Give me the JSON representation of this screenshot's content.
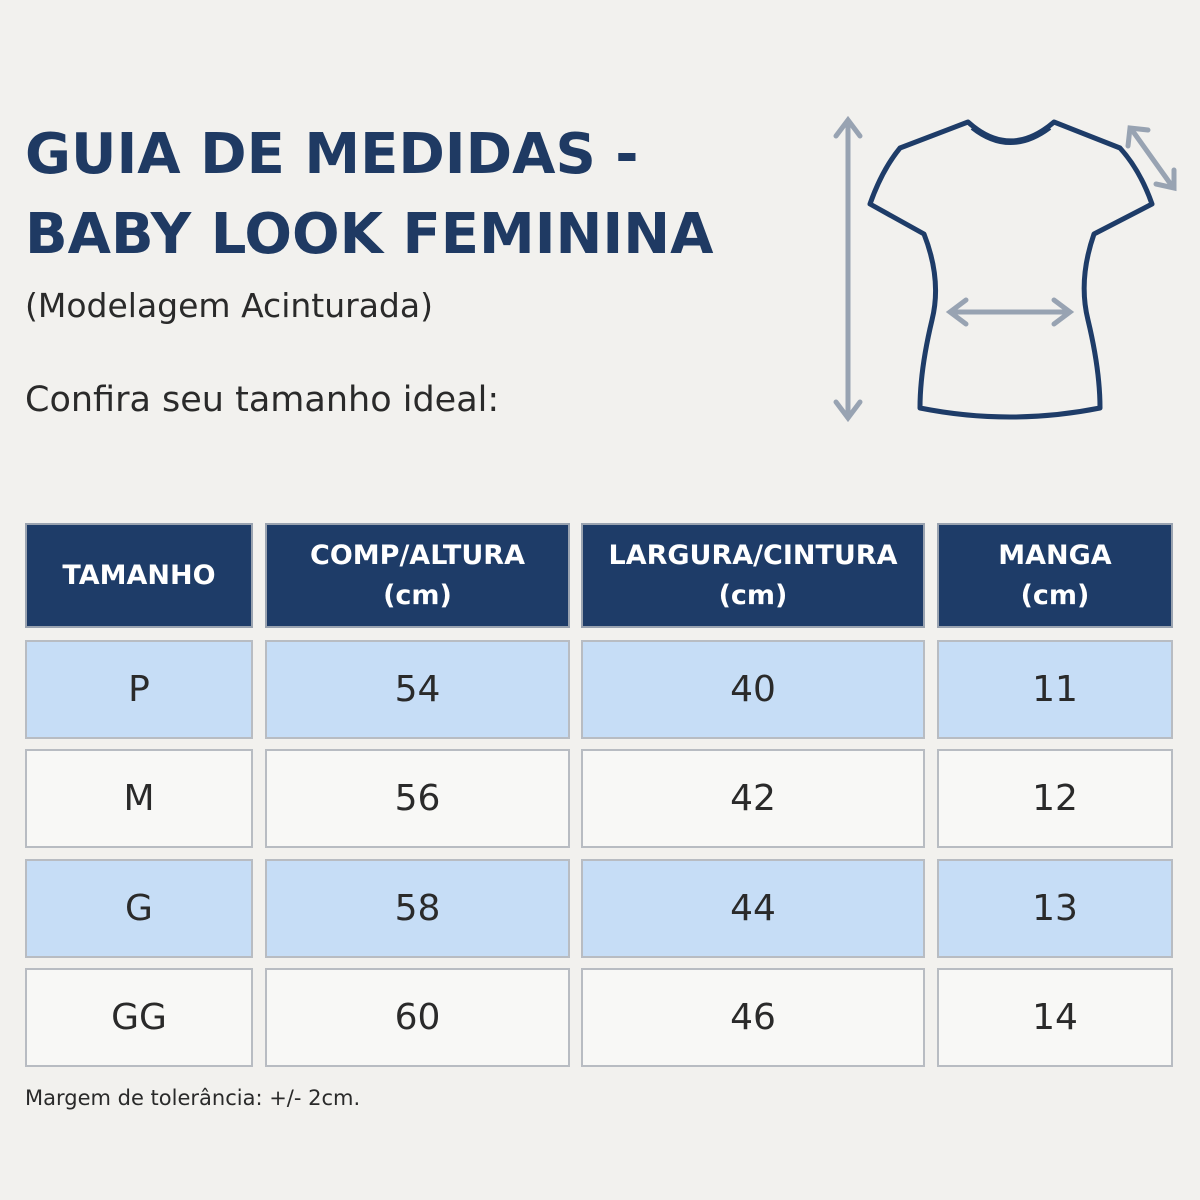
{
  "header": {
    "title": [
      "GUIA DE MEDIDAS -",
      "BABY LOOK FEMININA"
    ],
    "subtitle": "(Modelagem Acinturada)",
    "intro": "Confira seu tamanho ideal:"
  },
  "table": {
    "columns": [
      [
        "TAMANHO"
      ],
      [
        "COMP/ALTURA",
        "(cm)"
      ],
      [
        "LARGURA/CINTURA",
        "(cm)"
      ],
      [
        "MANGA",
        "(cm)"
      ]
    ],
    "rows": [
      [
        "P",
        54,
        40,
        11
      ],
      [
        "M",
        56,
        42,
        12
      ],
      [
        "G",
        58,
        44,
        13
      ],
      [
        "GG",
        60,
        46,
        14
      ]
    ]
  },
  "footnote": "Margem de tolerância: +/- 2cm."
}
